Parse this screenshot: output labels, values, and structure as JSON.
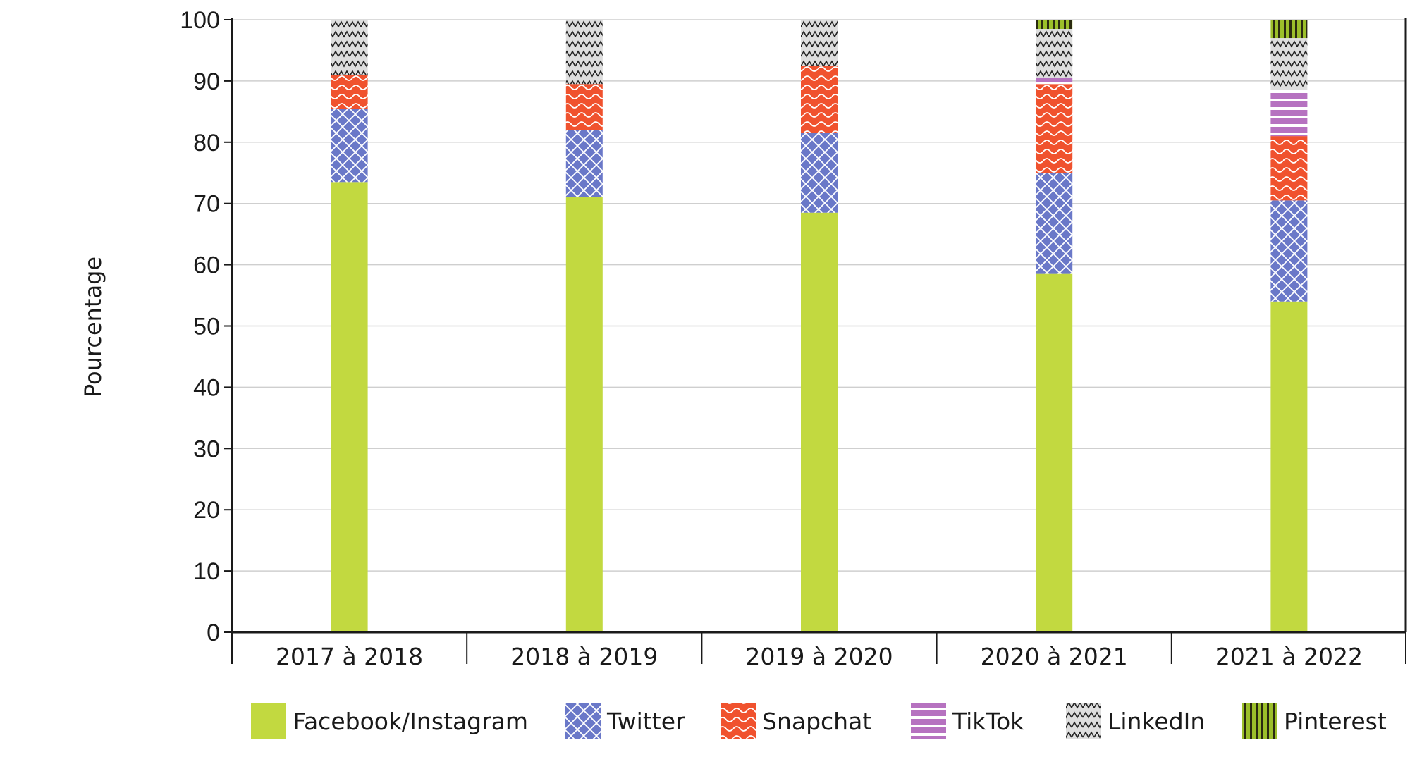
{
  "chart_data": {
    "type": "bar",
    "stacked": true,
    "title": "",
    "xlabel": "",
    "ylabel": "Pourcentage",
    "ylim": [
      0,
      100
    ],
    "yticks": [
      0,
      10,
      20,
      30,
      40,
      50,
      60,
      70,
      80,
      90,
      100
    ],
    "grid": true,
    "legend_position": "bottom",
    "categories": [
      "2017 à 2018",
      "2018 à 2019",
      "2019 à 2020",
      "2020 à 2021",
      "2021 à 2022"
    ],
    "series": [
      {
        "name": "Facebook/Instagram",
        "color": "#c2d940",
        "pattern": "solid",
        "values": [
          73.5,
          71.0,
          68.5,
          58.5,
          54.0
        ]
      },
      {
        "name": "Twitter",
        "color": "#6a78c8",
        "pattern": "crosshatch",
        "values": [
          12.0,
          11.0,
          13.0,
          16.5,
          16.5
        ]
      },
      {
        "name": "Snapchat",
        "color": "#f0522e",
        "pattern": "wave",
        "values": [
          5.5,
          7.5,
          11.0,
          14.5,
          10.5
        ]
      },
      {
        "name": "TikTok",
        "color": "#b672c0",
        "pattern": "hstripe",
        "values": [
          0,
          0,
          0,
          1.0,
          7.5
        ]
      },
      {
        "name": "LinkedIn",
        "color": "#d6d6d6",
        "pattern": "zigzag",
        "values": [
          9.0,
          10.5,
          7.5,
          8.0,
          8.5
        ]
      },
      {
        "name": "Pinterest",
        "color": "#9cbf2a",
        "pattern": "vstripe",
        "values": [
          0,
          0,
          0,
          1.5,
          3.0
        ]
      }
    ]
  }
}
